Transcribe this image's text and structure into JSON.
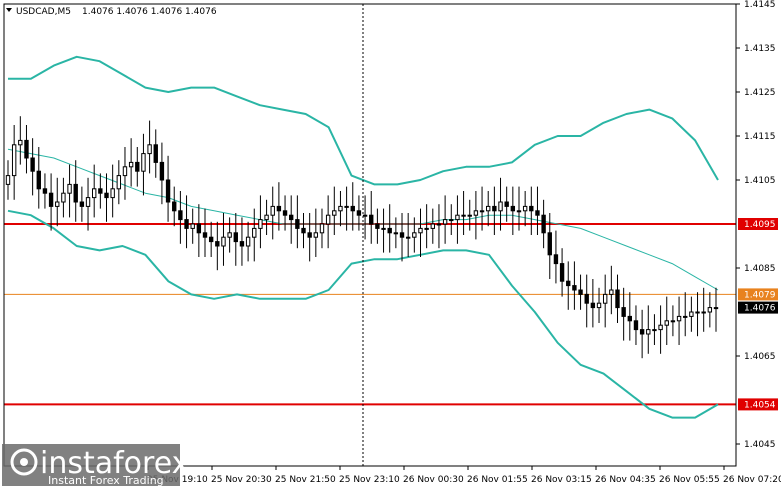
{
  "header": {
    "symbol": "USDCAD,M5",
    "ohlc": "1.4076 1.4076 1.4076 1.4076"
  },
  "logo": {
    "brand": "instaforex",
    "tagline": "Instant Forex Trading"
  },
  "colors": {
    "candle": "#000000",
    "bollinger": "#2ab5a5",
    "ma_thin": "#2ab5a5",
    "level_red": "#e00000",
    "level_orange": "#e8821e",
    "badge_text": "#ffffff",
    "current_badge_bg": "#000000"
  },
  "chart_data": {
    "type": "candlestick",
    "symbol": "USDCAD",
    "timeframe": "M5",
    "ylim": [
      1.404,
      1.4145
    ],
    "y_ticks": [
      "1.4145",
      "1.4135",
      "1.4125",
      "1.4115",
      "1.4105",
      "1.4085",
      "1.4065",
      "1.4045"
    ],
    "x_tick_labels": [
      "25 Nov 19:10",
      "25 Nov 20:30",
      "25 Nov 21:50",
      "25 Nov 23:10",
      "26 Nov 00:30",
      "26 Nov 01:55",
      "26 Nov 03:15",
      "26 Nov 04:35",
      "26 Nov 05:55",
      "26 Nov 07:20"
    ],
    "grid": false,
    "levels": [
      {
        "label": "1.4095",
        "value": 1.4095,
        "color": "#e00000"
      },
      {
        "label": "1.4079",
        "value": 1.4079,
        "color": "#e8821e"
      },
      {
        "label": "1.4054",
        "value": 1.4054,
        "color": "#e00000"
      }
    ],
    "current_price": {
      "label": "1.4076",
      "value": 1.4076
    },
    "close": [
      1.4106,
      1.4113,
      1.4114,
      1.411,
      1.4107,
      1.4103,
      1.4102,
      1.4099,
      1.41,
      1.4102,
      1.4104,
      1.41,
      1.4099,
      1.4101,
      1.4103,
      1.4102,
      1.4101,
      1.4103,
      1.4106,
      1.4108,
      1.4109,
      1.4107,
      1.4111,
      1.4113,
      1.4109,
      1.4105,
      1.41,
      1.4098,
      1.4096,
      1.4094,
      1.4095,
      1.4093,
      1.4092,
      1.4091,
      1.409,
      1.4092,
      1.4093,
      1.4091,
      1.409,
      1.4092,
      1.4094,
      1.4096,
      1.4097,
      1.4099,
      1.4098,
      1.4097,
      1.4096,
      1.4094,
      1.4093,
      1.4092,
      1.4093,
      1.4095,
      1.4097,
      1.4098,
      1.4099,
      1.4099,
      1.4098,
      1.4097,
      1.4097,
      1.4095,
      1.4094,
      1.4094,
      1.4093,
      1.4093,
      1.4092,
      1.4092,
      1.4093,
      1.4094,
      1.4094,
      1.4095,
      1.4095,
      1.4096,
      1.4096,
      1.4097,
      1.4097,
      1.4097,
      1.4098,
      1.4098,
      1.4099,
      1.4098,
      1.41,
      1.4099,
      1.4098,
      1.4098,
      1.4099,
      1.4098,
      1.4097,
      1.4093,
      1.4088,
      1.4086,
      1.4082,
      1.4081,
      1.408,
      1.4079,
      1.4077,
      1.4076,
      1.4077,
      1.4079,
      1.408,
      1.4076,
      1.4074,
      1.4073,
      1.4071,
      1.407,
      1.4071,
      1.4071,
      1.4072,
      1.4073,
      1.4073,
      1.4074,
      1.4074,
      1.4075,
      1.4075,
      1.4075,
      1.4076,
      1.4076
    ],
    "bollinger_upper": [
      1.4128,
      1.4128,
      1.4131,
      1.4133,
      1.4132,
      1.4129,
      1.4126,
      1.4125,
      1.4126,
      1.4126,
      1.4124,
      1.4122,
      1.4121,
      1.412,
      1.4117,
      1.4106,
      1.4104,
      1.4104,
      1.4105,
      1.4107,
      1.4108,
      1.4108,
      1.4109,
      1.4113,
      1.4115,
      1.4115,
      1.4118,
      1.412,
      1.4121,
      1.4119,
      1.4114,
      1.4105
    ],
    "bollinger_lower": [
      1.4098,
      1.4097,
      1.4094,
      1.409,
      1.4089,
      1.409,
      1.4088,
      1.4082,
      1.4079,
      1.4078,
      1.4079,
      1.4078,
      1.4078,
      1.4078,
      1.408,
      1.4086,
      1.4087,
      1.4087,
      1.4088,
      1.4089,
      1.4089,
      1.4088,
      1.4081,
      1.4075,
      1.4068,
      1.4063,
      1.4061,
      1.4057,
      1.4053,
      1.4051,
      1.4051,
      1.4054
    ],
    "moving_average": [
      1.4112,
      1.4111,
      1.411,
      1.4108,
      1.4106,
      1.4104,
      1.4102,
      1.4101,
      1.4099,
      1.4098,
      1.4097,
      1.4096,
      1.4095,
      1.4095,
      1.4095,
      1.4095,
      1.4095,
      1.4095,
      1.4095,
      1.4096,
      1.4096,
      1.4097,
      1.4097,
      1.4096,
      1.4095,
      1.4094,
      1.4092,
      1.409,
      1.4088,
      1.4086,
      1.4083,
      1.408
    ]
  }
}
